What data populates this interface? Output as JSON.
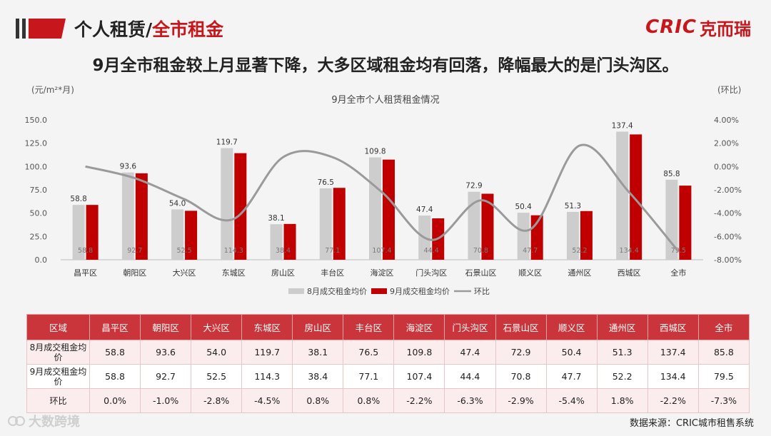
{
  "header": {
    "title_part1": "个人租赁/",
    "title_part2": "全市租金",
    "logo_mark": "CRIC",
    "logo_name": "克而瑞"
  },
  "headline": "9月全市租金较上月显著下降，大多区域租金均有回落，降幅最大的是门头沟区。",
  "colors": {
    "aug_bar": "#cdcdcd",
    "sep_bar": "#c00000",
    "mom_line": "#9a9a9a",
    "table_header": "#c9353a",
    "brand": "#c8161d"
  },
  "chart_data": {
    "type": "bar",
    "title": "9月全市个人租赁租金情况",
    "ylabel": "(元/m²*月)",
    "y2label": "(环比)",
    "ylim": [
      0,
      150
    ],
    "y2lim": [
      -8,
      4
    ],
    "yticks": [
      "150.0",
      "125.0",
      "100.0",
      "75.0",
      "50.0",
      "25.0",
      "0.0"
    ],
    "y2ticks": [
      "4.00%",
      "2.00%",
      "0.00%",
      "-2.00%",
      "-4.00%",
      "-6.00%",
      "-8.00%"
    ],
    "categories": [
      "昌平区",
      "朝阳区",
      "大兴区",
      "东城区",
      "房山区",
      "丰台区",
      "海淀区",
      "门头沟区",
      "石景山区",
      "顺义区",
      "通州区",
      "西城区",
      "全市"
    ],
    "series": [
      {
        "name": "8月成交租金均价",
        "type": "bar",
        "values": [
          58.8,
          93.6,
          54.0,
          119.7,
          38.1,
          76.5,
          109.8,
          47.4,
          72.9,
          50.4,
          51.3,
          137.4,
          85.8
        ]
      },
      {
        "name": "9月成交租金均价",
        "type": "bar",
        "values": [
          58.8,
          92.7,
          52.5,
          114.3,
          38.4,
          77.1,
          107.4,
          44.4,
          70.8,
          47.7,
          52.2,
          134.4,
          79.5
        ]
      },
      {
        "name": "环比",
        "type": "line",
        "axis": "right",
        "values": [
          0.0,
          -1.0,
          -2.8,
          -4.5,
          0.8,
          0.8,
          -2.2,
          -6.3,
          -2.9,
          -5.4,
          1.8,
          -2.2,
          -7.3
        ]
      }
    ],
    "aug_labels": [
      "58.8",
      "93.6",
      "54.0",
      "119.7",
      "38.1",
      "76.5",
      "109.8",
      "47.4",
      "72.9",
      "50.4",
      "51.3",
      "137.4",
      "85.8"
    ],
    "sep_labels": [
      "58.8",
      "92.7",
      "52.5",
      "114.3",
      "38.4",
      "77.1",
      "107.4",
      "44.4",
      "70.8",
      "47.7",
      "52.2",
      "134.4",
      "79.5"
    ],
    "legend_position": "bottom"
  },
  "table": {
    "headers": [
      "区域",
      "昌平区",
      "朝阳区",
      "大兴区",
      "东城区",
      "房山区",
      "丰台区",
      "海淀区",
      "门头沟区",
      "石景山区",
      "顺义区",
      "通州区",
      "西城区",
      "全市"
    ],
    "rows": [
      {
        "label": "8月成交租金均价",
        "values": [
          "58.8",
          "93.6",
          "54.0",
          "119.7",
          "38.1",
          "76.5",
          "109.8",
          "47.4",
          "72.9",
          "50.4",
          "51.3",
          "137.4",
          "85.8"
        ]
      },
      {
        "label": "9月成交租金均价",
        "values": [
          "58.8",
          "92.7",
          "52.5",
          "114.3",
          "38.4",
          "77.1",
          "107.4",
          "44.4",
          "70.8",
          "47.7",
          "52.2",
          "134.4",
          "79.5"
        ]
      },
      {
        "label": "环比",
        "values": [
          "0.0%",
          "-1.0%",
          "-2.8%",
          "-4.5%",
          "0.8%",
          "0.8%",
          "-2.2%",
          "-6.3%",
          "-2.9%",
          "-5.4%",
          "1.8%",
          "-2.2%",
          "-7.3%"
        ]
      }
    ]
  },
  "footer": {
    "source": "数据来源：CRIC城市租售系统",
    "watermark": "大数跨境"
  }
}
